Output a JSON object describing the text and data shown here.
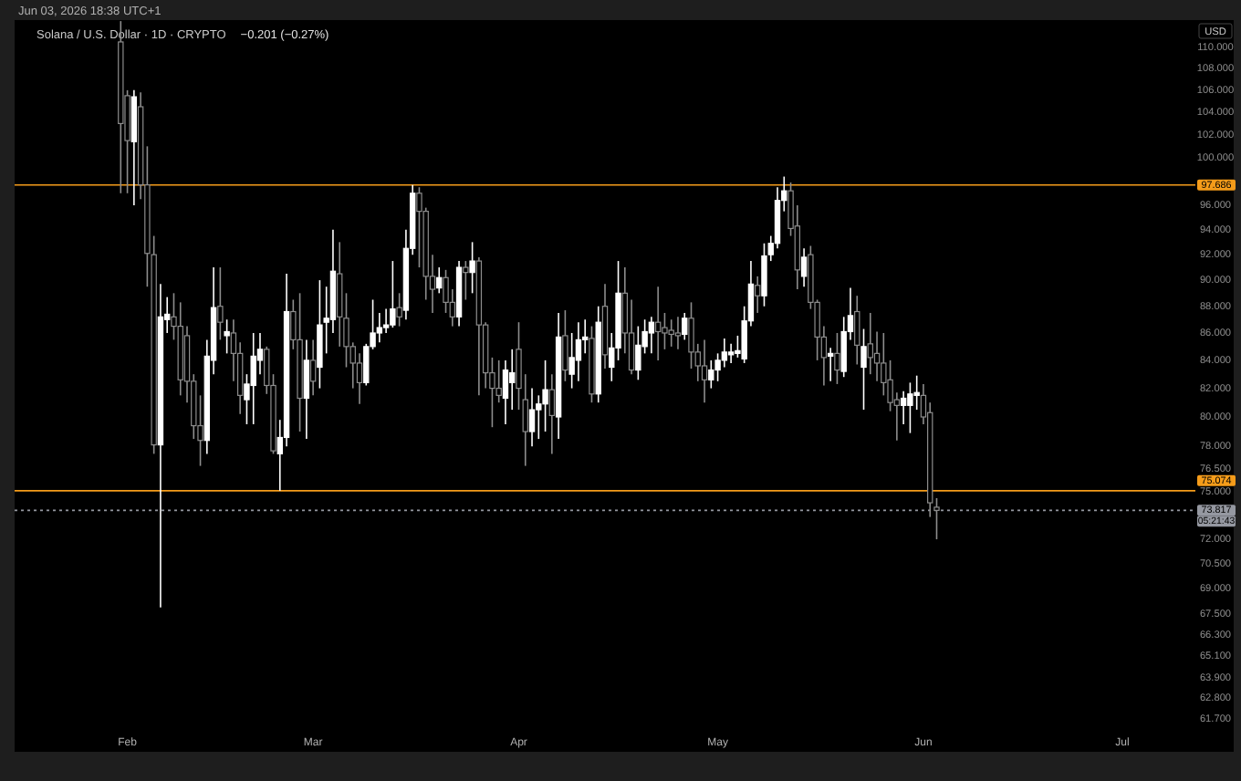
{
  "chart_data": {
    "type": "candlestick",
    "title": "Solana / U.S. Dollar · 1D · CRYPTO",
    "subtitle": "−0.201 (−0.27%)",
    "ylabel": "USD",
    "log": "y",
    "x": [
      "2026-01-31",
      "2026-02-01",
      "2026-02-02",
      "2026-02-03",
      "2026-02-04",
      "2026-02-05",
      "2026-02-06",
      "2026-02-07",
      "2026-02-08",
      "2026-02-09",
      "2026-02-10",
      "2026-02-11",
      "2026-02-12",
      "2026-02-13",
      "2026-02-14",
      "2026-02-15",
      "2026-02-16",
      "2026-02-17",
      "2026-02-18",
      "2026-02-19",
      "2026-02-20",
      "2026-02-21",
      "2026-02-22",
      "2026-02-23",
      "2026-02-24",
      "2026-02-25",
      "2026-02-26",
      "2026-02-27",
      "2026-02-28",
      "2026-03-01",
      "2026-03-02",
      "2026-03-03",
      "2026-03-04",
      "2026-03-05",
      "2026-03-06",
      "2026-03-07",
      "2026-03-08",
      "2026-03-09",
      "2026-03-10",
      "2026-03-11",
      "2026-03-12",
      "2026-03-13",
      "2026-03-14",
      "2026-03-15",
      "2026-03-16",
      "2026-03-17",
      "2026-03-18",
      "2026-03-19",
      "2026-03-20",
      "2026-03-21",
      "2026-03-22",
      "2026-03-23",
      "2026-03-24",
      "2026-03-25",
      "2026-03-26",
      "2026-03-27",
      "2026-03-28",
      "2026-03-29",
      "2026-03-30",
      "2026-03-31",
      "2026-04-01",
      "2026-04-02",
      "2026-04-03",
      "2026-04-04",
      "2026-04-05",
      "2026-04-06",
      "2026-04-07",
      "2026-04-08",
      "2026-04-09",
      "2026-04-10",
      "2026-04-11",
      "2026-04-12",
      "2026-04-13",
      "2026-04-14",
      "2026-04-15",
      "2026-04-16",
      "2026-04-17",
      "2026-04-18",
      "2026-04-19",
      "2026-04-20",
      "2026-04-21",
      "2026-04-22",
      "2026-04-23",
      "2026-04-24",
      "2026-04-25",
      "2026-04-26",
      "2026-04-27",
      "2026-04-28",
      "2026-04-29",
      "2026-04-30",
      "2026-05-01",
      "2026-05-02",
      "2026-05-03",
      "2026-05-04",
      "2026-05-05",
      "2026-05-06",
      "2026-05-07",
      "2026-05-08",
      "2026-05-09",
      "2026-05-10",
      "2026-05-11",
      "2026-05-12",
      "2026-05-13",
      "2026-05-14",
      "2026-05-15",
      "2026-05-16",
      "2026-05-17",
      "2026-05-18",
      "2026-05-19",
      "2026-05-20",
      "2026-05-21",
      "2026-05-22",
      "2026-05-23",
      "2026-05-24",
      "2026-05-25",
      "2026-05-26",
      "2026-05-27",
      "2026-05-28",
      "2026-05-29",
      "2026-05-30",
      "2026-05-31",
      "2026-06-01",
      "2026-06-02",
      "2026-06-03"
    ],
    "ohlc": [
      [
        110.5,
        112.5,
        97,
        103
      ],
      [
        105.5,
        106,
        97,
        101.5
      ],
      [
        101.4,
        106,
        96,
        105.4
      ],
      [
        104.5,
        105.8,
        96.5,
        97.7
      ],
      [
        97.7,
        101,
        89.5,
        92.1
      ],
      [
        92,
        93.5,
        77.5,
        78.1
      ],
      [
        78.1,
        89.7,
        67.9,
        87.2
      ],
      [
        87,
        88.7,
        86,
        87.4
      ],
      [
        87.2,
        89,
        85.5,
        86.5
      ],
      [
        86.5,
        88.3,
        81.5,
        82.6
      ],
      [
        85.8,
        86.5,
        81,
        82.5
      ],
      [
        82.5,
        83,
        78.5,
        79.4
      ],
      [
        79.4,
        81.5,
        76.7,
        78.4
      ],
      [
        78.4,
        85.5,
        77.5,
        84.3
      ],
      [
        84,
        91,
        83,
        87.9
      ],
      [
        88,
        91,
        85.5,
        86.8
      ],
      [
        85.8,
        87,
        84.5,
        86.1
      ],
      [
        86,
        87,
        82.5,
        84.5
      ],
      [
        84.5,
        85.3,
        80.2,
        81.5
      ],
      [
        81.2,
        83,
        79.5,
        82.3
      ],
      [
        82.2,
        86,
        79.5,
        84.3
      ],
      [
        84,
        86,
        83,
        84.8
      ],
      [
        84.8,
        85,
        81.6,
        82.2
      ],
      [
        82.2,
        83,
        77.5,
        77.7
      ],
      [
        77.5,
        79.8,
        75.074,
        78.6
      ],
      [
        78.6,
        90.5,
        78,
        87.6
      ],
      [
        87.6,
        88.5,
        84.8,
        85.5
      ],
      [
        85.5,
        89,
        79,
        81.3
      ],
      [
        81.3,
        85.5,
        78.5,
        84
      ],
      [
        84,
        85.5,
        81.5,
        82.5
      ],
      [
        83.5,
        90,
        82,
        86.6
      ],
      [
        86.8,
        89.5,
        84.5,
        87.1
      ],
      [
        87,
        94,
        86,
        90.7
      ],
      [
        90.5,
        93,
        85,
        87.2
      ],
      [
        87.1,
        89,
        83.5,
        85
      ],
      [
        85,
        85.3,
        82,
        83.8
      ],
      [
        83.8,
        84.5,
        80.9,
        82.4
      ],
      [
        82.4,
        85.2,
        82.2,
        85
      ],
      [
        85,
        88.5,
        84.8,
        86
      ],
      [
        86,
        87.5,
        85.3,
        86.4
      ],
      [
        86.4,
        87.8,
        86,
        86.6
      ],
      [
        86.6,
        91.5,
        86.4,
        87.8
      ],
      [
        87.9,
        89,
        86.5,
        87.2
      ],
      [
        87.7,
        94,
        87,
        92.5
      ],
      [
        92.5,
        97.686,
        92,
        97
      ],
      [
        97,
        97.5,
        91,
        95.5
      ],
      [
        95.5,
        95.8,
        88.5,
        90.3
      ],
      [
        90.3,
        92,
        87.5,
        89.3
      ],
      [
        89.4,
        91,
        89,
        90.2
      ],
      [
        90.2,
        90.8,
        87.5,
        88.3
      ],
      [
        88.3,
        89.3,
        86.5,
        87.2
      ],
      [
        87.2,
        91.5,
        86.5,
        91
      ],
      [
        91,
        91.5,
        88.5,
        90.6
      ],
      [
        90.6,
        93,
        89,
        91.5
      ],
      [
        91.5,
        91.8,
        81.5,
        86.6
      ],
      [
        86.6,
        86.8,
        82,
        83.1
      ],
      [
        83.1,
        84.2,
        79.3,
        82
      ],
      [
        82,
        84,
        81,
        81.5
      ],
      [
        81.3,
        84,
        79.5,
        83.3
      ],
      [
        82.4,
        84.8,
        80.5,
        83.1
      ],
      [
        84.8,
        86.8,
        80.5,
        82
      ],
      [
        81.2,
        83,
        76.7,
        79
      ],
      [
        79,
        82,
        78,
        80.5
      ],
      [
        80.5,
        81.5,
        78.5,
        80.9
      ],
      [
        80.9,
        84,
        79,
        81.9
      ],
      [
        81.9,
        83,
        77.5,
        80.1
      ],
      [
        80,
        87.5,
        78.5,
        85.7
      ],
      [
        85.8,
        87.7,
        82.5,
        83.3
      ],
      [
        83,
        86,
        82,
        84.2
      ],
      [
        84,
        86.8,
        82.5,
        85.5
      ],
      [
        85.5,
        87,
        84.5,
        85.7
      ],
      [
        85.6,
        86.5,
        81,
        81.6
      ],
      [
        81.6,
        88,
        81,
        86.8
      ],
      [
        88,
        89.7,
        83.4,
        84.4
      ],
      [
        83.5,
        86,
        82.5,
        84.9
      ],
      [
        84.9,
        91.5,
        84,
        89
      ],
      [
        89,
        91,
        84.5,
        86
      ],
      [
        86,
        88.5,
        83,
        83.3
      ],
      [
        83.3,
        86.5,
        82.6,
        85.1
      ],
      [
        85,
        87,
        84.5,
        86.1
      ],
      [
        86,
        87.2,
        84.5,
        86.8
      ],
      [
        86.8,
        89.5,
        84,
        86.1
      ],
      [
        86.4,
        87.5,
        84.8,
        86
      ],
      [
        86.2,
        87,
        85,
        85.9
      ],
      [
        86,
        87.2,
        84.8,
        85.8
      ],
      [
        85.9,
        87.5,
        85.5,
        87.1
      ],
      [
        87.1,
        88.3,
        83.4,
        84.6
      ],
      [
        84.6,
        85.2,
        82.5,
        83.6
      ],
      [
        83.6,
        85.5,
        81,
        82.6
      ],
      [
        82.6,
        84,
        82,
        83.3
      ],
      [
        83.3,
        84.5,
        82.5,
        84
      ],
      [
        84,
        85.6,
        83.5,
        84.6
      ],
      [
        84.4,
        85.2,
        83.8,
        84.6
      ],
      [
        84.5,
        85.8,
        84.2,
        84.7
      ],
      [
        84.1,
        88,
        83.8,
        86.9
      ],
      [
        86.9,
        91.5,
        86.5,
        89.7
      ],
      [
        89.6,
        90.3,
        87.5,
        88.8
      ],
      [
        88.8,
        92.9,
        88,
        91.9
      ],
      [
        92,
        93.5,
        91.5,
        92.9
      ],
      [
        92.9,
        97.5,
        92.5,
        96.4
      ],
      [
        96.4,
        98.4,
        95.5,
        97.2
      ],
      [
        97.2,
        97.9,
        93.5,
        94.1
      ],
      [
        94.3,
        96,
        89.3,
        90.8
      ],
      [
        90.3,
        92.5,
        89.5,
        91.8
      ],
      [
        92,
        92.7,
        87.8,
        88.3
      ],
      [
        88.3,
        88.5,
        84,
        85.7
      ],
      [
        85.7,
        86.5,
        82.2,
        84.2
      ],
      [
        84.3,
        84.9,
        82.5,
        84.5
      ],
      [
        84.5,
        86,
        82.3,
        83.3
      ],
      [
        83.2,
        87.2,
        82.8,
        86.1
      ],
      [
        86.1,
        89.4,
        85.5,
        87.3
      ],
      [
        87.6,
        88.8,
        83.7,
        85.1
      ],
      [
        83.5,
        86.3,
        80.5,
        85
      ],
      [
        85.2,
        87.5,
        83,
        84.2
      ],
      [
        84.5,
        86.1,
        82.5,
        83.8
      ],
      [
        83.8,
        86,
        81.5,
        82.4
      ],
      [
        82.6,
        84,
        80.4,
        81
      ],
      [
        81.2,
        81.7,
        78.4,
        80.8
      ],
      [
        80.8,
        81.8,
        79.5,
        81.3
      ],
      [
        80.8,
        82.4,
        78.9,
        81.6
      ],
      [
        81.5,
        82.9,
        80.5,
        81.7
      ],
      [
        81.5,
        82.3,
        79.5,
        80
      ],
      [
        80.3,
        81,
        73.4,
        74.3
      ],
      [
        74.018,
        74.6,
        72,
        73.817
      ]
    ],
    "xlim": [
      "2026-01-15",
      "2026-07-12"
    ],
    "xticks": [
      {
        "value": "2026-02-01",
        "label": "Feb"
      },
      {
        "value": "2026-03-01",
        "label": "Mar"
      },
      {
        "value": "2026-04-01",
        "label": "Apr"
      },
      {
        "value": "2026-05-01",
        "label": "May"
      },
      {
        "value": "2026-06-01",
        "label": "Jun"
      },
      {
        "value": "2026-07-01",
        "label": "Jul"
      }
    ],
    "ylim": [
      61.1,
      112.6
    ],
    "yticks": [
      {
        "value": 110,
        "label": "110.000"
      },
      {
        "value": 108,
        "label": "108.000"
      },
      {
        "value": 106,
        "label": "106.000"
      },
      {
        "value": 104,
        "label": "104.000"
      },
      {
        "value": 102,
        "label": "102.000"
      },
      {
        "value": 100,
        "label": "100.000"
      },
      {
        "value": 96,
        "label": "96.000"
      },
      {
        "value": 94,
        "label": "94.000"
      },
      {
        "value": 92,
        "label": "92.000"
      },
      {
        "value": 90,
        "label": "90.000"
      },
      {
        "value": 88,
        "label": "88.000"
      },
      {
        "value": 86,
        "label": "86.000"
      },
      {
        "value": 84,
        "label": "84.000"
      },
      {
        "value": 82,
        "label": "82.000"
      },
      {
        "value": 80,
        "label": "80.000"
      },
      {
        "value": 78,
        "label": "78.000"
      },
      {
        "value": 76.5,
        "label": "76.500"
      },
      {
        "value": 75,
        "label": "75.000"
      },
      {
        "value": 72,
        "label": "72.000"
      },
      {
        "value": 70.5,
        "label": "70.500"
      },
      {
        "value": 69,
        "label": "69.000"
      },
      {
        "value": 67.5,
        "label": "67.500"
      },
      {
        "value": 66.3,
        "label": "66.300"
      },
      {
        "value": 65.1,
        "label": "65.100"
      },
      {
        "value": 63.9,
        "label": "63.900"
      },
      {
        "value": 62.8,
        "label": "62.800"
      },
      {
        "value": 61.7,
        "label": "61.700"
      }
    ],
    "ref_lines": [
      {
        "axis": "y",
        "value": 97.686,
        "label": "97.686",
        "color": "#f59c1a",
        "line_style": "solid"
      },
      {
        "axis": "y",
        "value": 75.074,
        "label": "75.074",
        "color": "#f59c1a",
        "line_style": "solid"
      },
      {
        "axis": "y",
        "value": 73.817,
        "label": "73.817",
        "color": "#9598a1",
        "line_style": "dotted"
      }
    ],
    "annotations": [
      "Jun 03, 2026 18:38 UTC+1",
      "05:21:43"
    ]
  }
}
